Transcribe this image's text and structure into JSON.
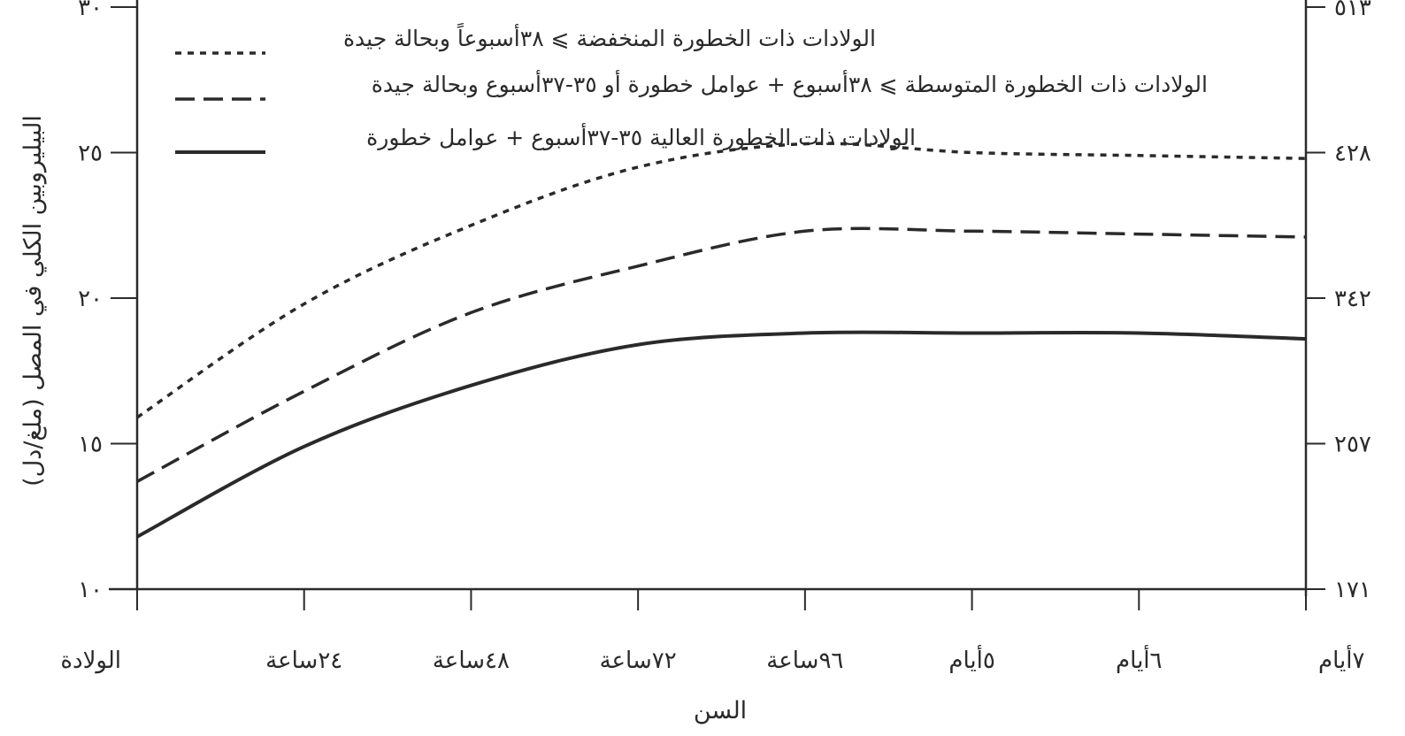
{
  "chart_data": {
    "type": "line",
    "title": "",
    "xlabel": "السن",
    "ylabel": "البيليروبين الكلي في المصل (ملغ/دل)",
    "categories": [
      "الولادة",
      "٢٤ساعة",
      "٤٨ساعة",
      "٧٢ساعة",
      "٩٦ساعة",
      "٥أيام",
      "٦أيام",
      "٧أيام"
    ],
    "x": [
      0,
      24,
      48,
      72,
      96,
      120,
      144,
      168
    ],
    "xlim": [
      0,
      168
    ],
    "ylim": [
      10,
      30
    ],
    "yticks": [
      10,
      15,
      20,
      25,
      30
    ],
    "ytick_labels": [
      "١٠",
      "١٥",
      "٢٠",
      "٢٥",
      "٣٠"
    ],
    "y2_ticks": [
      {
        "value": 10,
        "label": "١٧١"
      },
      {
        "value": 15,
        "label": "٢٥٧"
      },
      {
        "value": 20,
        "label": "٣٤٢"
      },
      {
        "value": 25,
        "label": "٤٢٨"
      },
      {
        "value": 30,
        "label": "٥١٣"
      }
    ],
    "grid": false,
    "legend_position": "top-left",
    "series": [
      {
        "name": "الولادات ذات الخطورة المنخفضة ⩾ ٣٨أسبوعاً وبحالة جيدة",
        "style": "dotted",
        "values": [
          15.9,
          19.8,
          22.5,
          24.5,
          25.3,
          25.0,
          24.9,
          24.8
        ]
      },
      {
        "name": "الولادات ذات الخطورة المتوسطة ⩾ ٣٨أسبوع + عوامل خطورة أو ٣٥-٣٧أسبوع وبحالة جيدة",
        "style": "dashed",
        "values": [
          13.7,
          16.8,
          19.5,
          21.1,
          22.3,
          22.3,
          22.2,
          22.1
        ]
      },
      {
        "name": "الولادات ذات الخطورة العالية ٣٥-٣٧أسبوع + عوامل خطورة",
        "style": "solid",
        "values": [
          11.8,
          14.9,
          17.0,
          18.4,
          18.8,
          18.8,
          18.8,
          18.6
        ]
      }
    ]
  },
  "colors": {
    "line": "#2a2a2a",
    "background": "#ffffff"
  }
}
